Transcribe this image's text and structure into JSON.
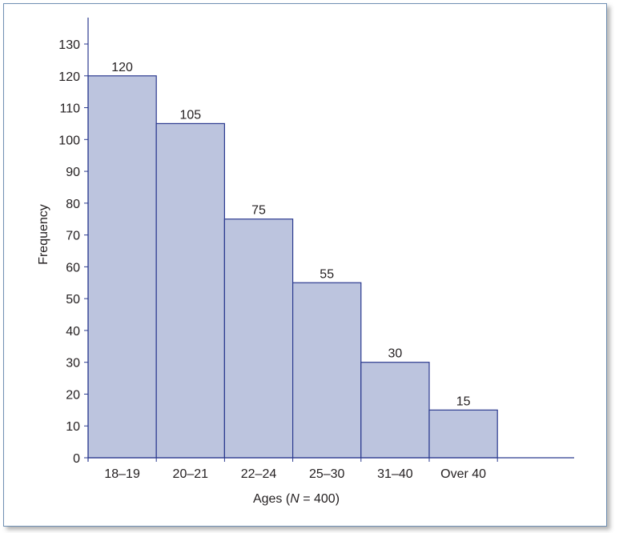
{
  "chart_data": {
    "type": "bar",
    "categories": [
      "18–19",
      "20–21",
      "22–24",
      "25–30",
      "31–40",
      "Over 40"
    ],
    "values": [
      120,
      105,
      75,
      55,
      30,
      15
    ],
    "ylabel": "Frequency",
    "xlabel_prefix": "Ages (",
    "xlabel_var": "N",
    "xlabel_suffix": " = 400)",
    "ylim": [
      0,
      130
    ],
    "yticks": [
      0,
      10,
      20,
      30,
      40,
      50,
      60,
      70,
      80,
      90,
      100,
      110,
      120,
      130
    ],
    "data_labels": true,
    "grid": false,
    "bar_fill": "#bcc4de",
    "bar_stroke": "#2b3a8f",
    "axis_color": "#2b3a8f"
  }
}
